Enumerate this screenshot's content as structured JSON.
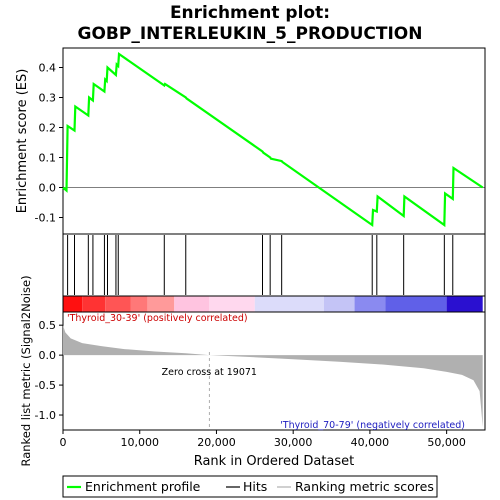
{
  "chart_data": {
    "type": "line",
    "title_line1": "Enrichment plot:",
    "title_line2": "GOBP_INTERLEUKIN_5_PRODUCTION",
    "xlabel": "Rank in Ordered Dataset",
    "es_ylabel": "Enrichment score (ES)",
    "metric_ylabel": "Ranked list metric (Signal2Noise)",
    "xlim": [
      0,
      55000
    ],
    "xticks": [
      0,
      10000,
      20000,
      30000,
      40000,
      50000
    ],
    "xtick_labels": [
      "0",
      "10,000",
      "20,000",
      "30,000",
      "40,000",
      "50,000"
    ],
    "es_ylim": [
      -0.155,
      0.465
    ],
    "es_yticks": [
      -0.1,
      0.0,
      0.1,
      0.2,
      0.3,
      0.4
    ],
    "es_ytick_labels": [
      "-0.1",
      "0.0",
      "0.1",
      "0.2",
      "0.3",
      "0.4"
    ],
    "metric_ylim": [
      -1.25,
      0.72
    ],
    "metric_yticks": [
      -1.0,
      -0.5,
      0.0,
      0.5
    ],
    "metric_ytick_labels": [
      "-1.0",
      "-0.5",
      "0.0",
      "0.5"
    ],
    "es_profile": {
      "x": [
        0,
        450,
        600,
        1500,
        1600,
        3300,
        3400,
        3900,
        4000,
        5400,
        5500,
        5700,
        5800,
        6900,
        7000,
        7200,
        7300,
        13200,
        13300,
        16000,
        16100,
        26000,
        26100,
        27000,
        27100,
        28500,
        28600,
        40300,
        40400,
        40900,
        41000,
        44400,
        44500,
        49700,
        49800,
        50800,
        50900,
        54700
      ],
      "y": [
        0.0,
        -0.01,
        0.205,
        0.19,
        0.27,
        0.24,
        0.3,
        0.29,
        0.345,
        0.32,
        0.36,
        0.355,
        0.4,
        0.375,
        0.41,
        0.405,
        0.445,
        0.34,
        0.345,
        0.3,
        0.297,
        0.12,
        0.116,
        0.1,
        0.096,
        0.088,
        0.085,
        -0.125,
        -0.075,
        -0.08,
        -0.03,
        -0.095,
        -0.03,
        -0.125,
        -0.02,
        -0.038,
        0.065,
        0.0
      ]
    },
    "hits": [
      600,
      1500,
      3300,
      3900,
      5400,
      5800,
      6900,
      7200,
      13200,
      16000,
      26000,
      27000,
      28500,
      40300,
      40900,
      44400,
      49700,
      50800
    ],
    "zero_cross": 19071,
    "zero_cross_label": "Zero cross at 19071",
    "pos_label": "'Thyroid_30-39' (positively correlated)",
    "neg_label": "'Thyroid_70-79' (negatively correlated)",
    "metric_profile": {
      "x": [
        0,
        300,
        1000,
        2500,
        5000,
        8000,
        12000,
        16000,
        19071,
        24000,
        30000,
        36000,
        42000,
        47000,
        50000,
        52000,
        53500,
        54300,
        54500,
        54700
      ],
      "y": [
        0.5,
        0.38,
        0.28,
        0.2,
        0.15,
        0.1,
        0.06,
        0.03,
        0.0,
        -0.03,
        -0.07,
        -0.11,
        -0.16,
        -0.22,
        -0.28,
        -0.33,
        -0.42,
        -0.6,
        -0.9,
        -1.2
      ]
    },
    "legend": [
      "Enrichment profile",
      "Hits",
      "Ranking metric scores"
    ],
    "colors": {
      "es_line": "#00ff00",
      "hit": "#000000",
      "metric_fill": "#b0b0b0",
      "pos_text": "#cc0000",
      "neg_text": "#2020c0",
      "heat_low": "#d0d0f8",
      "heat_high": "#ff0000"
    },
    "heat_bands": [
      {
        "from": 0,
        "to": 2500,
        "color": "#ff1010"
      },
      {
        "from": 2500,
        "to": 5500,
        "color": "#ff3333"
      },
      {
        "from": 5500,
        "to": 8800,
        "color": "#ff5555"
      },
      {
        "from": 8800,
        "to": 11000,
        "color": "#ff7878"
      },
      {
        "from": 11000,
        "to": 14500,
        "color": "#ff9a9a"
      },
      {
        "from": 14500,
        "to": 19071,
        "color": "#ffc4e0"
      },
      {
        "from": 19071,
        "to": 25000,
        "color": "#ffd8ee"
      },
      {
        "from": 25000,
        "to": 34000,
        "color": "#dcdcfa"
      },
      {
        "from": 34000,
        "to": 38000,
        "color": "#c4c4f6"
      },
      {
        "from": 38000,
        "to": 42000,
        "color": "#8a8af0"
      },
      {
        "from": 42000,
        "to": 50000,
        "color": "#6060e8"
      },
      {
        "from": 50000,
        "to": 54700,
        "color": "#2a10d0"
      }
    ]
  }
}
